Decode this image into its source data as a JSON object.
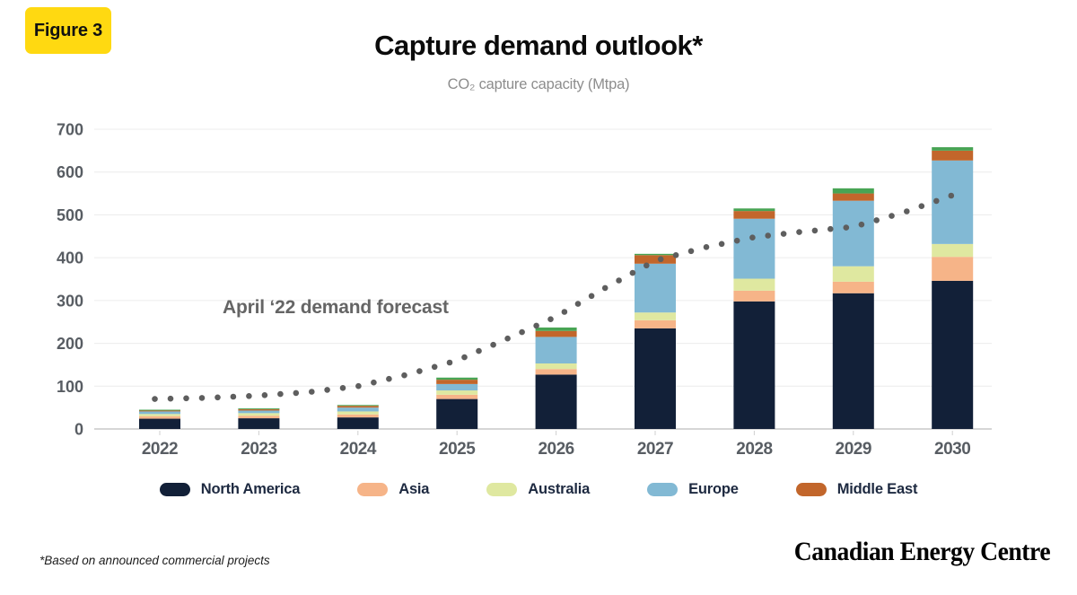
{
  "figure_label": "Figure 3",
  "title": "Capture demand outlook*",
  "subtitle": "CO₂ capture capacity (Mtpa)",
  "annotation": "April ‘22 demand forecast",
  "footnote": "*Based on announced commercial projects",
  "brand": "Canadian Energy Centre",
  "colors": {
    "badge_bg": "#FFD911",
    "gridline": "#ECECEC",
    "axis_line": "#C9C9C9",
    "tick_mark": "#CFCFCF",
    "tick_label": "#585D63",
    "dot": "#5E5E5E",
    "annotation": "#656565",
    "subtitle": "#8D8D8D",
    "legend_text": "#1D2940",
    "title_text": "#0B0B0B"
  },
  "chart_data": {
    "type": "bar",
    "stacked": true,
    "title": "Capture demand outlook*",
    "ylabel": "CO₂ capture capacity (Mtpa)",
    "xlabel": "",
    "ylim": [
      0,
      700
    ],
    "yticks": [
      0,
      100,
      200,
      300,
      400,
      500,
      600,
      700
    ],
    "grid": true,
    "legend_position": "bottom",
    "categories": [
      "2022",
      "2023",
      "2024",
      "2025",
      "2026",
      "2027",
      "2028",
      "2029",
      "2030"
    ],
    "series": [
      {
        "name": "North America",
        "color": "#122038",
        "in_legend": true,
        "values": [
          24,
          25,
          27,
          70,
          127,
          235,
          298,
          317,
          346
        ]
      },
      {
        "name": "Asia",
        "color": "#F6B488",
        "in_legend": true,
        "values": [
          6,
          6,
          7,
          10,
          13,
          19,
          25,
          27,
          56
        ]
      },
      {
        "name": "Australia",
        "color": "#DFE8A0",
        "in_legend": true,
        "values": [
          5,
          6,
          7,
          10,
          13,
          18,
          28,
          36,
          30
        ]
      },
      {
        "name": "Europe",
        "color": "#82B9D4",
        "in_legend": true,
        "values": [
          6,
          6,
          9,
          15,
          62,
          114,
          140,
          153,
          195
        ]
      },
      {
        "name": "Middle East",
        "color": "#C2662B",
        "in_legend": true,
        "values": [
          2,
          3,
          4,
          10,
          14,
          20,
          18,
          17,
          23
        ]
      },
      {
        "name": "Other",
        "color": "#48A454",
        "in_legend": false,
        "values": [
          2,
          2,
          2,
          5,
          8,
          3,
          6,
          12,
          8
        ]
      }
    ],
    "line_series": {
      "name": "April ‘22 demand forecast",
      "style": "dotted",
      "color": "#5E5E5E",
      "points": [
        [
          2021.95,
          70
        ],
        [
          2022.5,
          73
        ],
        [
          2023,
          78
        ],
        [
          2023.5,
          86
        ],
        [
          2024,
          100
        ],
        [
          2024.5,
          127
        ],
        [
          2025,
          160
        ],
        [
          2025.5,
          210
        ],
        [
          2026,
          262
        ],
        [
          2026.5,
          330
        ],
        [
          2027,
          393
        ],
        [
          2027.5,
          424
        ],
        [
          2028,
          448
        ],
        [
          2028.5,
          461
        ],
        [
          2029,
          472
        ],
        [
          2029.5,
          505
        ],
        [
          2030.05,
          550
        ]
      ]
    }
  }
}
